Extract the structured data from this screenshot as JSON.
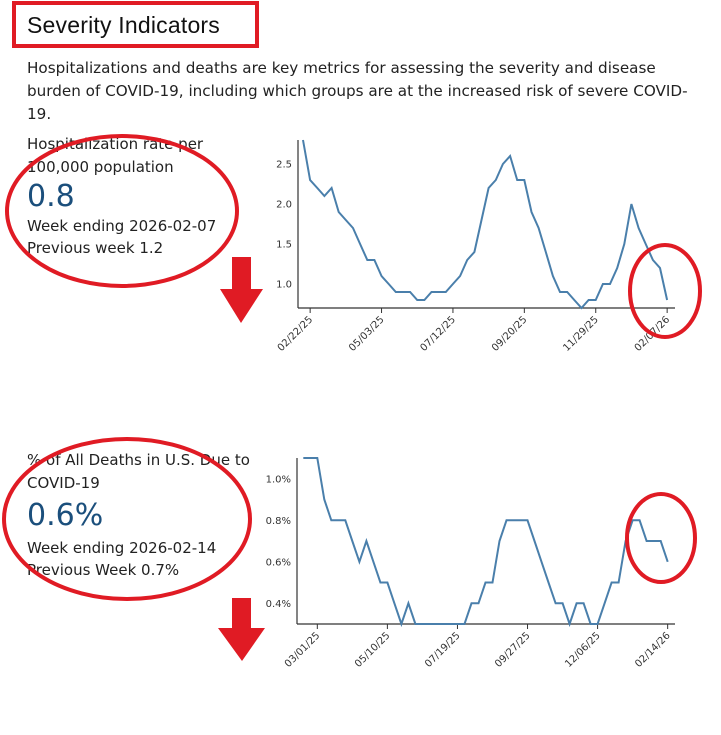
{
  "section": {
    "title": "Severity Indicators",
    "description": "Hospitalizations and deaths are key metrics for assessing the severity and disease burden of COVID-19, including which groups are at the increased risk of severe COVID-19."
  },
  "metrics": [
    {
      "label": "Hospitalization rate per 100,000 population",
      "value": "0.8",
      "week": "Week ending 2026-02-07",
      "previous": "Previous week 1.2",
      "trend_icon": "arrow-down-icon"
    },
    {
      "label": "% of All Deaths in U.S. Due to COVID-19",
      "value": "0.6%",
      "week": "Week ending 2026-02-14",
      "previous": "Previous Week 0.7%",
      "trend_icon": "arrow-down-icon"
    }
  ],
  "colors": {
    "line": "#4a7fab",
    "value": "#1b4f7c",
    "annotation": "#e01b24"
  },
  "chart_data": [
    {
      "type": "line",
      "title": "Hospitalization rate per 100,000 population",
      "start_week": "02/15/25",
      "interval": "weekly",
      "xtick_labels": [
        "02/22/25",
        "05/03/25",
        "07/12/25",
        "09/20/25",
        "11/29/25",
        "02/07/26"
      ],
      "xtick_index": [
        1,
        11,
        21,
        31,
        41,
        51
      ],
      "ytick_labels": [
        "1.0",
        "1.5",
        "2.0",
        "2.5"
      ],
      "yticks": [
        1.0,
        1.5,
        2.0,
        2.5
      ],
      "ylim": [
        0.7,
        2.8
      ],
      "values": [
        2.8,
        2.3,
        2.2,
        2.1,
        2.2,
        1.9,
        1.8,
        1.7,
        1.5,
        1.3,
        1.3,
        1.1,
        1.0,
        0.9,
        0.9,
        0.9,
        0.8,
        0.8,
        0.9,
        0.9,
        0.9,
        1.0,
        1.1,
        1.3,
        1.4,
        1.8,
        2.2,
        2.3,
        2.5,
        2.6,
        2.3,
        2.3,
        1.9,
        1.7,
        1.4,
        1.1,
        0.9,
        0.9,
        0.8,
        0.7,
        0.8,
        0.8,
        1.0,
        1.0,
        1.2,
        1.5,
        2.0,
        1.7,
        1.5,
        1.3,
        1.2,
        0.8
      ]
    },
    {
      "type": "line",
      "title": "% of All Deaths in U.S. Due to COVID-19",
      "start_week": "02/15/25",
      "interval": "weekly",
      "xtick_labels": [
        "03/01/25",
        "05/10/25",
        "07/19/25",
        "09/27/25",
        "12/06/25",
        "02/14/26"
      ],
      "xtick_index": [
        2,
        12,
        22,
        32,
        42,
        52
      ],
      "ytick_labels": [
        "0.4%",
        "0.6%",
        "0.8%",
        "1.0%"
      ],
      "yticks": [
        0.4,
        0.6,
        0.8,
        1.0
      ],
      "ylim": [
        0.3,
        1.1
      ],
      "values": [
        1.1,
        1.1,
        1.1,
        0.9,
        0.8,
        0.8,
        0.8,
        0.7,
        0.6,
        0.7,
        0.6,
        0.5,
        0.5,
        0.4,
        0.3,
        0.4,
        0.3,
        0.3,
        0.3,
        0.3,
        0.3,
        0.3,
        0.3,
        0.3,
        0.4,
        0.4,
        0.5,
        0.5,
        0.7,
        0.8,
        0.8,
        0.8,
        0.8,
        0.7,
        0.6,
        0.5,
        0.4,
        0.4,
        0.3,
        0.4,
        0.4,
        0.3,
        0.3,
        0.4,
        0.5,
        0.5,
        0.7,
        0.8,
        0.8,
        0.7,
        0.7,
        0.7,
        0.6
      ]
    }
  ]
}
